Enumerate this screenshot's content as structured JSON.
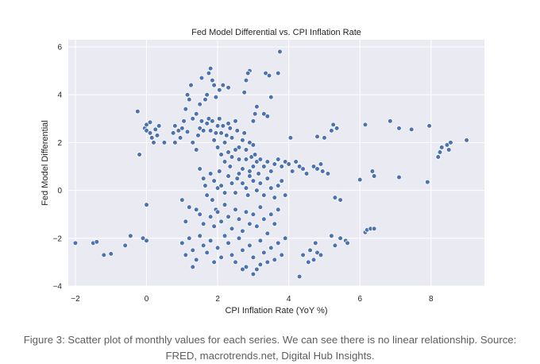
{
  "chart_data": {
    "type": "scatter",
    "title": "Fed Model Differential vs. CPI Inflation Rate",
    "xlabel": "CPI Inflation Rate (YoY %)",
    "ylabel": "Fed Model Differential",
    "xlim": [
      -2.2,
      9.5
    ],
    "ylim": [
      -4.0,
      6.3
    ],
    "xticks": [
      -2,
      0,
      2,
      4,
      6,
      8
    ],
    "yticks": [
      -4,
      -2,
      0,
      2,
      4,
      6
    ],
    "grid": true,
    "color": "#4c72b0",
    "background": "#eaeaf2",
    "points": [
      [
        -2.0,
        -2.2
      ],
      [
        -1.5,
        -2.2
      ],
      [
        -1.4,
        -2.15
      ],
      [
        -1.2,
        -2.7
      ],
      [
        -1.0,
        -2.65
      ],
      [
        -0.6,
        -2.3
      ],
      [
        -0.45,
        -1.9
      ],
      [
        -0.1,
        -2.0
      ],
      [
        0.0,
        -2.1
      ],
      [
        0.0,
        -0.6
      ],
      [
        -0.2,
        1.5
      ],
      [
        -0.25,
        3.3
      ],
      [
        -0.05,
        2.6
      ],
      [
        0.0,
        2.75
      ],
      [
        0.1,
        2.85
      ],
      [
        0.0,
        2.5
      ],
      [
        0.1,
        2.4
      ],
      [
        0.15,
        2.2
      ],
      [
        0.2,
        2.0
      ],
      [
        0.25,
        2.55
      ],
      [
        0.3,
        2.3
      ],
      [
        0.35,
        2.7
      ],
      [
        0.5,
        2.0
      ],
      [
        0.8,
        2.0
      ],
      [
        0.75,
        2.4
      ],
      [
        0.8,
        2.7
      ],
      [
        0.9,
        2.5
      ],
      [
        0.95,
        2.2
      ],
      [
        1.0,
        2.6
      ],
      [
        1.05,
        2.9
      ],
      [
        1.15,
        2.45
      ],
      [
        1.1,
        3.4
      ],
      [
        1.2,
        3.8
      ],
      [
        1.15,
        4.0
      ],
      [
        1.25,
        4.4
      ],
      [
        1.3,
        3.0
      ],
      [
        1.4,
        3.2
      ],
      [
        1.5,
        3.6
      ],
      [
        1.55,
        4.7
      ],
      [
        1.65,
        3.8
      ],
      [
        1.7,
        4.0
      ],
      [
        1.75,
        4.9
      ],
      [
        1.8,
        5.1
      ],
      [
        1.85,
        4.6
      ],
      [
        1.9,
        4.4
      ],
      [
        1.95,
        3.9
      ],
      [
        2.05,
        4.2
      ],
      [
        2.15,
        4.4
      ],
      [
        2.3,
        4.3
      ],
      [
        1.3,
        2.0
      ],
      [
        1.4,
        1.7
      ],
      [
        1.45,
        2.3
      ],
      [
        1.5,
        2.6
      ],
      [
        1.55,
        2.9
      ],
      [
        1.6,
        2.5
      ],
      [
        1.7,
        2.8
      ],
      [
        1.75,
        3.0
      ],
      [
        1.8,
        2.5
      ],
      [
        1.85,
        2.9
      ],
      [
        1.9,
        2.1
      ],
      [
        1.95,
        2.4
      ],
      [
        2.0,
        2.7
      ],
      [
        2.05,
        3.0
      ],
      [
        2.1,
        2.4
      ],
      [
        2.15,
        2.7
      ],
      [
        2.2,
        2.0
      ],
      [
        2.25,
        2.3
      ],
      [
        2.3,
        2.8
      ],
      [
        2.35,
        2.6
      ],
      [
        2.4,
        2.2
      ],
      [
        2.5,
        2.9
      ],
      [
        2.55,
        2.5
      ],
      [
        2.6,
        1.8
      ],
      [
        2.7,
        2.1
      ],
      [
        2.75,
        2.4
      ],
      [
        2.8,
        1.7
      ],
      [
        2.9,
        2.0
      ],
      [
        2.95,
        1.4
      ],
      [
        3.0,
        1.9
      ],
      [
        3.05,
        1.5
      ],
      [
        2.0,
        1.8
      ],
      [
        2.1,
        1.5
      ],
      [
        2.2,
        1.2
      ],
      [
        2.3,
        1.6
      ],
      [
        2.35,
        1.0
      ],
      [
        2.4,
        1.4
      ],
      [
        2.5,
        1.7
      ],
      [
        2.6,
        1.3
      ],
      [
        2.7,
        0.9
      ],
      [
        2.8,
        1.3
      ],
      [
        2.9,
        0.8
      ],
      [
        3.0,
        1.0
      ],
      [
        3.1,
        1.2
      ],
      [
        3.0,
        2.9
      ],
      [
        3.05,
        3.2
      ],
      [
        3.1,
        3.5
      ],
      [
        2.75,
        4.1
      ],
      [
        2.8,
        4.6
      ],
      [
        2.9,
        5.0
      ],
      [
        2.85,
        4.9
      ],
      [
        3.35,
        4.9
      ],
      [
        3.45,
        4.8
      ],
      [
        3.5,
        3.9
      ],
      [
        3.3,
        3.2
      ],
      [
        3.4,
        3.1
      ],
      [
        3.7,
        4.9
      ],
      [
        3.75,
        5.8
      ],
      [
        3.2,
        1.3
      ],
      [
        3.3,
        1.0
      ],
      [
        3.4,
        1.2
      ],
      [
        3.5,
        0.8
      ],
      [
        3.6,
        1.1
      ],
      [
        3.7,
        1.3
      ],
      [
        3.8,
        1.0
      ],
      [
        3.9,
        1.2
      ],
      [
        4.0,
        1.1
      ],
      [
        4.1,
        0.8
      ],
      [
        4.2,
        1.2
      ],
      [
        4.3,
        1.0
      ],
      [
        4.4,
        0.9
      ],
      [
        4.5,
        0.7
      ],
      [
        4.7,
        1.0
      ],
      [
        4.8,
        0.9
      ],
      [
        4.95,
        0.8
      ],
      [
        5.1,
        0.7
      ],
      [
        4.9,
        1.1
      ],
      [
        4.05,
        2.2
      ],
      [
        1.8,
        0.7
      ],
      [
        1.9,
        0.4
      ],
      [
        2.0,
        0.1
      ],
      [
        2.05,
        0.8
      ],
      [
        2.1,
        0.2
      ],
      [
        2.2,
        -0.1
      ],
      [
        2.3,
        0.6
      ],
      [
        2.4,
        0.3
      ],
      [
        2.5,
        -0.1
      ],
      [
        2.55,
        0.5
      ],
      [
        2.6,
        0.7
      ],
      [
        2.7,
        0.3
      ],
      [
        2.8,
        0.1
      ],
      [
        2.85,
        -0.2
      ],
      [
        2.9,
        0.6
      ],
      [
        3.0,
        0.4
      ],
      [
        3.1,
        0.0
      ],
      [
        3.15,
        0.7
      ],
      [
        3.2,
        0.3
      ],
      [
        3.3,
        -0.2
      ],
      [
        3.4,
        0.5
      ],
      [
        3.5,
        0.1
      ],
      [
        3.6,
        -0.3
      ],
      [
        3.7,
        0.2
      ],
      [
        3.8,
        0.4
      ],
      [
        3.9,
        -0.2
      ],
      [
        1.5,
        0.9
      ],
      [
        1.6,
        0.5
      ],
      [
        1.7,
        -0.2
      ],
      [
        1.65,
        0.2
      ],
      [
        1.85,
        -0.4
      ],
      [
        1.95,
        -0.8
      ],
      [
        1.0,
        -0.4
      ],
      [
        1.1,
        -1.3
      ],
      [
        1.2,
        -0.7
      ],
      [
        1.4,
        -0.8
      ],
      [
        1.5,
        -1.0
      ],
      [
        1.6,
        -1.4
      ],
      [
        1.8,
        -1.1
      ],
      [
        1.9,
        -1.5
      ],
      [
        2.0,
        -0.9
      ],
      [
        2.1,
        -1.3
      ],
      [
        2.2,
        -0.6
      ],
      [
        2.3,
        -1.1
      ],
      [
        2.4,
        -1.6
      ],
      [
        2.5,
        -0.8
      ],
      [
        2.6,
        -1.2
      ],
      [
        2.7,
        -1.7
      ],
      [
        2.8,
        -0.9
      ],
      [
        2.9,
        -1.4
      ],
      [
        3.0,
        -1.0
      ],
      [
        3.1,
        -1.5
      ],
      [
        3.2,
        -0.7
      ],
      [
        3.3,
        -1.2
      ],
      [
        3.4,
        -1.8
      ],
      [
        3.5,
        -1.0
      ],
      [
        3.6,
        -1.4
      ],
      [
        3.7,
        -0.8
      ],
      [
        1.0,
        -2.2
      ],
      [
        1.1,
        -2.7
      ],
      [
        1.2,
        -2.0
      ],
      [
        1.3,
        -2.5
      ],
      [
        1.4,
        -2.9
      ],
      [
        1.5,
        -1.9
      ],
      [
        1.6,
        -2.3
      ],
      [
        1.7,
        -2.6
      ],
      [
        1.8,
        -2.1
      ],
      [
        1.9,
        -3.0
      ],
      [
        2.0,
        -2.4
      ],
      [
        2.1,
        -2.8
      ],
      [
        2.2,
        -1.9
      ],
      [
        2.3,
        -2.2
      ],
      [
        2.4,
        -2.7
      ],
      [
        2.5,
        -3.0
      ],
      [
        2.6,
        -2.0
      ],
      [
        2.7,
        -2.5
      ],
      [
        2.8,
        -3.2
      ],
      [
        2.9,
        -2.3
      ],
      [
        3.0,
        -2.8
      ],
      [
        3.1,
        -3.3
      ],
      [
        3.2,
        -2.1
      ],
      [
        3.3,
        -2.6
      ],
      [
        3.4,
        -3.0
      ],
      [
        3.5,
        -2.4
      ],
      [
        3.6,
        -2.9
      ],
      [
        3.7,
        -2.2
      ],
      [
        3.8,
        -2.7
      ],
      [
        3.9,
        -2.0
      ],
      [
        3.0,
        -3.5
      ],
      [
        3.2,
        -3.1
      ],
      [
        2.7,
        -3.3
      ],
      [
        1.3,
        -3.2
      ],
      [
        4.3,
        -3.6
      ],
      [
        4.4,
        -2.7
      ],
      [
        4.6,
        -2.5
      ],
      [
        4.75,
        -2.2
      ],
      [
        4.7,
        -2.9
      ],
      [
        4.8,
        -2.6
      ],
      [
        4.9,
        -2.7
      ],
      [
        4.55,
        -3.0
      ],
      [
        4.8,
        2.25
      ],
      [
        5.0,
        2.2
      ],
      [
        5.2,
        2.5
      ],
      [
        5.25,
        2.75
      ],
      [
        5.35,
        2.6
      ],
      [
        5.3,
        -0.3
      ],
      [
        5.45,
        -0.4
      ],
      [
        5.2,
        -1.9
      ],
      [
        5.3,
        -2.3
      ],
      [
        5.45,
        -2.0
      ],
      [
        5.6,
        -2.1
      ],
      [
        5.65,
        -2.2
      ],
      [
        6.0,
        0.45
      ],
      [
        6.35,
        0.8
      ],
      [
        6.4,
        0.6
      ],
      [
        6.15,
        2.75
      ],
      [
        6.15,
        -1.75
      ],
      [
        6.2,
        -1.65
      ],
      [
        6.3,
        -1.6
      ],
      [
        6.4,
        -1.6
      ],
      [
        6.85,
        2.9
      ],
      [
        7.1,
        2.6
      ],
      [
        7.45,
        2.55
      ],
      [
        7.1,
        0.55
      ],
      [
        7.9,
        0.35
      ],
      [
        7.95,
        2.7
      ],
      [
        8.2,
        1.4
      ],
      [
        8.25,
        1.6
      ],
      [
        8.3,
        1.8
      ],
      [
        8.45,
        1.9
      ],
      [
        8.55,
        2.0
      ],
      [
        8.5,
        1.7
      ],
      [
        9.0,
        2.1
      ]
    ]
  },
  "caption": {
    "line1": "Figure 3: Scatter plot of monthly values for each series. We can see there is no linear relationship. Source:",
    "line2": "FRED, macrotrends.net, Digital Hub Insights."
  }
}
